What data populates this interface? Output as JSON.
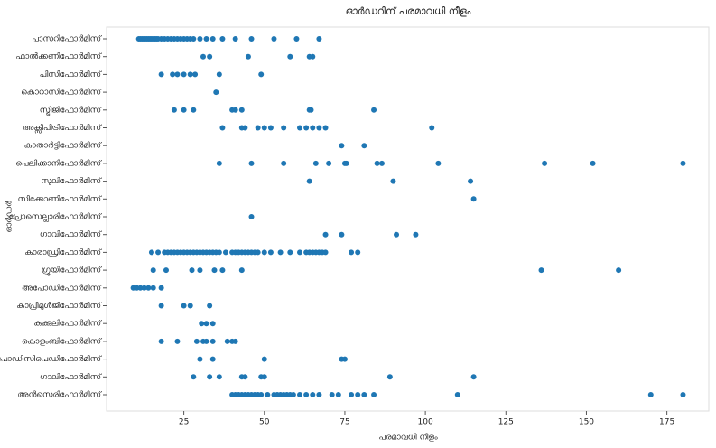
{
  "chart_data": {
    "type": "scatter",
    "title": "ഓർഡറിന് പരമാവധി നീളം",
    "x_label": "പരമാവധി നീളം",
    "y_label": "ഓർഡർ",
    "color": "#1f77b4",
    "xlim": [
      1,
      188
    ],
    "xticks": [
      25,
      50,
      75,
      100,
      125,
      150,
      175
    ],
    "categories": [
      "പാസറിഫോർമിസ്",
      "ഫാൽക്കണിഫോർമിസ്",
      "പിസിഫോർമിസ്",
      "കൊറാസിഫോർമിസ്",
      "സ്ട്രിജിഫോർമിസ്",
      "അക്സിപിട്രിഫോർമിസ്",
      "കാതാർട്ടിഫോർമിസ്",
      "പെലിക്കാനിഫോർമിസ്",
      "സുലിഫോർമിസ്",
      "സിക്കോണിഫോർമിസ്",
      "പ്രോസെല്ലാരിഫോർമിസ്",
      "ഗാവിഫോർമിസ്",
      "കാരാഡ്രിഫോർമിസ്",
      "ഗ്രൂയിഫോർമിസ്",
      "അപോഡിഫോർമിസ്",
      "കാപ്രിമുൾജിഫോർമിസ്",
      "കുക്കുലിഫോർമിസ്",
      "കൊളംബിഫോർമിസ്",
      "പോഡിസിപെഡിഫോർമിസ്",
      "ഗാലിഫോർമിസ്",
      "അൻസെരിഫോർമിസ്"
    ],
    "values": [
      [
        11,
        11.5,
        12,
        12.5,
        13,
        13.5,
        14,
        14.5,
        15,
        15.5,
        16,
        16.5,
        17,
        18,
        19,
        20,
        21,
        22,
        23,
        24,
        25,
        26,
        27,
        28,
        30,
        32,
        34,
        37,
        41,
        46,
        53,
        60,
        67
      ],
      [
        31,
        33,
        45,
        58,
        64,
        65
      ],
      [
        18,
        21.5,
        23,
        25,
        27,
        28.5,
        36,
        49
      ],
      [
        35
      ],
      [
        22,
        25,
        28,
        40,
        41,
        43,
        64,
        64.5,
        84
      ],
      [
        37,
        43,
        44,
        48,
        50,
        52,
        56,
        61,
        63,
        65,
        67,
        69,
        102
      ],
      [
        74,
        81
      ],
      [
        36,
        46,
        56,
        66,
        70,
        75,
        75.5,
        85,
        86.5,
        104,
        137,
        152,
        180
      ],
      [
        64,
        90,
        114
      ],
      [
        115
      ],
      [
        46
      ],
      [
        69,
        74,
        91,
        97
      ],
      [
        15,
        17,
        19,
        20,
        21,
        22,
        23,
        24,
        25,
        26,
        27,
        28,
        29,
        30,
        31,
        32,
        33,
        34,
        35,
        36,
        38,
        40,
        41,
        42,
        43,
        44,
        45,
        46,
        47,
        48,
        50,
        52,
        55,
        58,
        61,
        63,
        64,
        65,
        66,
        67,
        68,
        69,
        77,
        79
      ],
      [
        15.5,
        19.5,
        27.5,
        30,
        34.5,
        37,
        43,
        136,
        160
      ],
      [
        9.3,
        10.4,
        11.5,
        12.7,
        14,
        15.5,
        18
      ],
      [
        18,
        25,
        27,
        33
      ],
      [
        30.5,
        32,
        34
      ],
      [
        18,
        23,
        29,
        31,
        32,
        34,
        38.5,
        40,
        41
      ],
      [
        30,
        34,
        50,
        74,
        75
      ],
      [
        28,
        33,
        36,
        43,
        44,
        49,
        50,
        89,
        115
      ],
      [
        40,
        41,
        42,
        43,
        44,
        45,
        46,
        47,
        48,
        49,
        51,
        53,
        54,
        55,
        56,
        57,
        58,
        59,
        61,
        63,
        65,
        67,
        71,
        73,
        77,
        79,
        81,
        84,
        110,
        170,
        180
      ]
    ]
  }
}
